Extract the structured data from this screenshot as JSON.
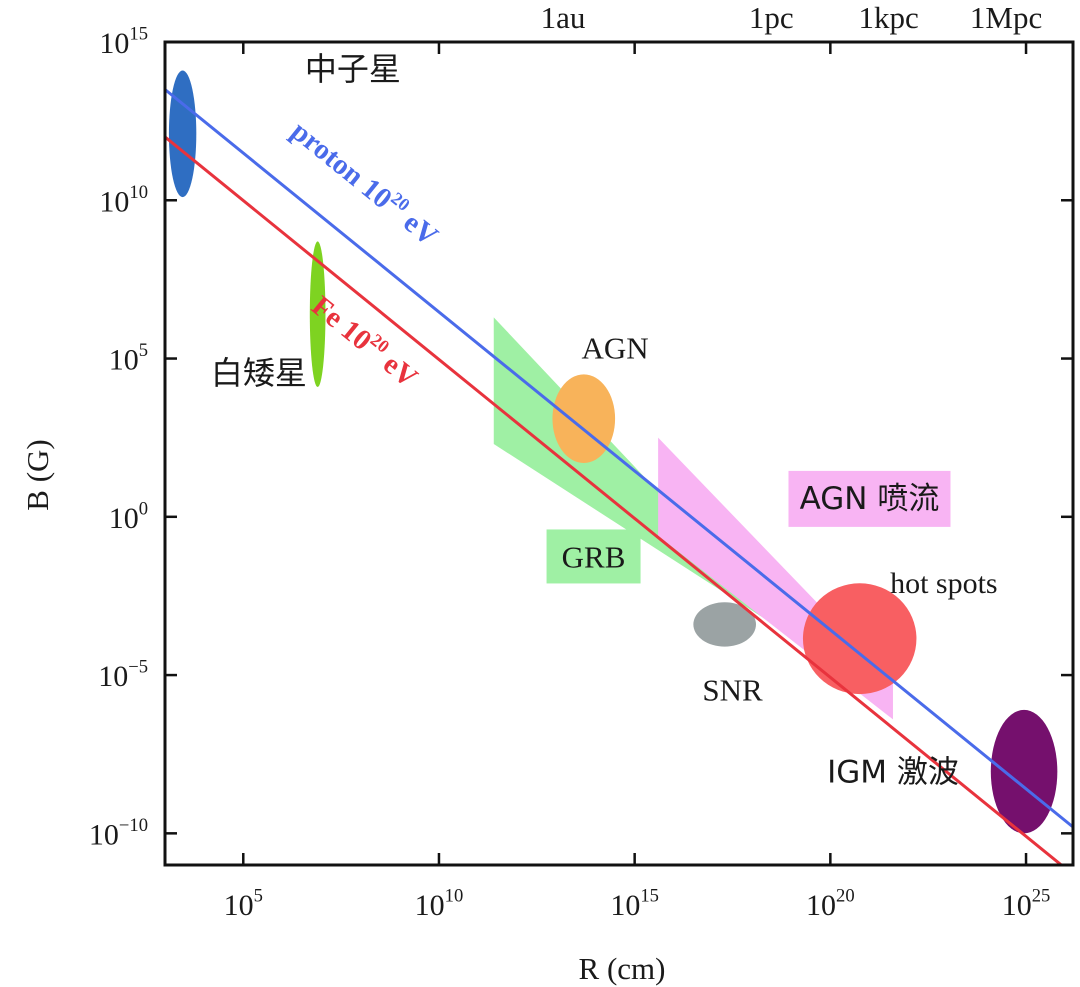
{
  "chart_data": {
    "type": "scatter",
    "scale": "log-log",
    "xlabel": "R (cm)",
    "ylabel": "B (G)",
    "xlim_log10": [
      3.0,
      26.2
    ],
    "ylim_log10": [
      -11.0,
      15.0
    ],
    "x_ticks": [
      {
        "exp": 5,
        "base": "10",
        "sup": "5"
      },
      {
        "exp": 10,
        "base": "10",
        "sup": "10"
      },
      {
        "exp": 15,
        "base": "10",
        "sup": "15"
      },
      {
        "exp": 20,
        "base": "10",
        "sup": "20"
      },
      {
        "exp": 25,
        "base": "10",
        "sup": "25"
      }
    ],
    "y_ticks": [
      {
        "exp": 15,
        "base": "10",
        "sup": "15"
      },
      {
        "exp": 10,
        "base": "10",
        "sup": "10"
      },
      {
        "exp": 5,
        "base": "10",
        "sup": "5"
      },
      {
        "exp": 0,
        "base": "10",
        "sup": "0"
      },
      {
        "exp": -5,
        "base": "10",
        "sup": "−5"
      },
      {
        "exp": -10,
        "base": "10",
        "sup": "−10"
      }
    ],
    "top_ticks": [
      {
        "label": "1au",
        "log10_cm": 13.17
      },
      {
        "label": "1pc",
        "log10_cm": 18.49
      },
      {
        "label": "1kpc",
        "log10_cm": 21.49
      },
      {
        "label": "1Mpc",
        "log10_cm": 24.49
      }
    ],
    "lines": [
      {
        "label_main": "proton 10",
        "label_sup": "20",
        "label_unit": " eV",
        "color": "#4a6bea",
        "x_log10": [
          3.0,
          26.2
        ],
        "y_log10": [
          13.5,
          -9.8
        ]
      },
      {
        "label_main": "Fe 10",
        "label_sup": "20",
        "label_unit": " eV",
        "color": "#e8333d",
        "x_log10": [
          3.0,
          26.2
        ],
        "y_log10": [
          12.0,
          -11.3
        ]
      }
    ],
    "regions": [
      {
        "label": "中子星",
        "shape": "ellipse",
        "color": "#2f6ec2",
        "x_log10": [
          3.1,
          3.8
        ],
        "y_log10": [
          10.1,
          14.1
        ]
      },
      {
        "label": "白矮星",
        "shape": "ellipse",
        "color": "#7ed321",
        "x_log10": [
          6.7,
          7.1
        ],
        "y_log10": [
          4.1,
          8.7
        ]
      },
      {
        "label": "AGN",
        "shape": "ellipse",
        "color": "#f8b35a",
        "x_log10": [
          12.9,
          14.5
        ],
        "y_log10": [
          1.7,
          4.5
        ]
      },
      {
        "label": "SNR",
        "shape": "ellipse",
        "color": "#9ba3a4",
        "x_log10": [
          16.5,
          18.1
        ],
        "y_log10": [
          -4.1,
          -2.7
        ]
      },
      {
        "label": "hot spots",
        "shape": "ellipse",
        "color": "#f85f62",
        "x_log10": [
          19.3,
          22.2
        ],
        "y_log10": [
          -5.6,
          -2.1
        ]
      },
      {
        "label": "IGM 激波",
        "shape": "ellipse",
        "color": "#75106d",
        "x_log10": [
          24.1,
          25.8
        ],
        "y_log10": [
          -10.0,
          -6.1
        ]
      },
      {
        "label": "GRB",
        "shape": "band",
        "color": "#9ff0a4",
        "x_log10": [
          11.4,
          18.8
        ],
        "y_top_log10": [
          6.3,
          -3.4
        ],
        "y_bottom_log10": [
          2.3,
          -3.6
        ]
      },
      {
        "label": "AGN 喷流",
        "shape": "band",
        "color": "#f8b4f3",
        "x_log10": [
          15.6,
          21.6
        ],
        "y_top_log10": [
          2.5,
          -5.2
        ],
        "y_bottom_log10": [
          -0.6,
          -6.4
        ]
      }
    ]
  }
}
